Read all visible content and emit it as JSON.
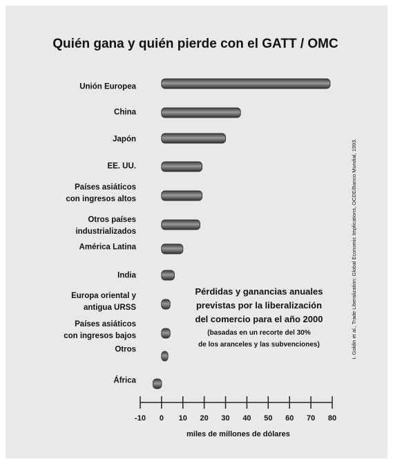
{
  "chart_data": {
    "type": "bar",
    "orientation": "horizontal",
    "title": "Quién gana y quién pierde con el GATT / OMC",
    "categories": [
      "Unión Europea",
      "China",
      "Japón",
      "EE. UU.",
      "Países asiáticos\ncon ingresos altos",
      "Otros países\nindustrializados",
      "América Latina",
      "India",
      "Europa oriental y\nantigua URSS",
      "Países asiáticos\ncon ingresos bajos",
      "Otros",
      "África"
    ],
    "values": [
      79,
      37,
      30,
      19,
      19,
      18,
      10,
      6,
      4,
      4,
      3,
      -4
    ],
    "color": "#6a6a6a",
    "xlim": [
      -10,
      80
    ],
    "xticks": [
      -10,
      0,
      10,
      20,
      30,
      40,
      50,
      60,
      70,
      80
    ],
    "xlabel": "miles de millones de dólares",
    "annotation": [
      "Pérdidas y ganancias anuales",
      "previstas por la liberalización",
      "del comercio para el año 2000",
      "(basadas en un recorte del 30%",
      "de los aranceles y las subvenciones)"
    ],
    "source": "I. Goldin et al., Trade Liberalization: Global Economic Implications, OCDE/Banco Mundial, 1993."
  }
}
